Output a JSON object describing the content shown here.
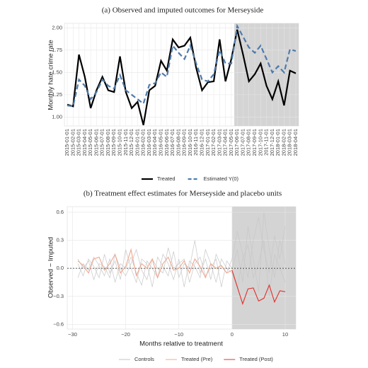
{
  "chart_data": [
    {
      "type": "line",
      "title": "(a) Observed and imputed outcomes for Merseyside",
      "y_label": "Monthly hate crime rate",
      "categories": [
        "2015-01-01",
        "2015-02-01",
        "2015-03-01",
        "2015-04-01",
        "2015-05-01",
        "2015-06-01",
        "2015-07-01",
        "2015-08-01",
        "2015-09-01",
        "2015-10-01",
        "2015-11-01",
        "2015-12-01",
        "2016-01-01",
        "2016-02-01",
        "2016-03-01",
        "2016-04-01",
        "2016-05-01",
        "2016-06-01",
        "2016-07-01",
        "2016-08-01",
        "2016-09-01",
        "2016-10-01",
        "2016-11-01",
        "2016-12-01",
        "2017-01-01",
        "2017-02-01",
        "2017-03-01",
        "2017-04-01",
        "2017-05-01",
        "2017-06-01",
        "2017-07-01",
        "2017-08-01",
        "2017-09-01",
        "2017-10-01",
        "2017-11-01",
        "2017-12-01",
        "2018-01-01",
        "2018-02-01",
        "2018-03-01",
        "2018-04-01"
      ],
      "series": [
        {
          "name": "Treated",
          "color": "#000000",
          "dashed": false,
          "values": [
            1.14,
            1.12,
            1.7,
            1.45,
            1.1,
            1.3,
            1.45,
            1.3,
            1.28,
            1.68,
            1.28,
            1.1,
            1.17,
            0.91,
            1.3,
            1.35,
            1.63,
            1.52,
            1.87,
            1.78,
            1.8,
            1.89,
            1.55,
            1.3,
            1.39,
            1.4,
            1.87,
            1.4,
            1.65,
            1.98,
            1.7,
            1.4,
            1.48,
            1.6,
            1.35,
            1.2,
            1.4,
            1.13,
            1.52,
            1.49
          ]
        },
        {
          "name": "Estimated Y(0)",
          "color": "#4f7bab",
          "dashed": true,
          "values": [
            1.13,
            1.12,
            1.42,
            1.35,
            1.2,
            1.28,
            1.42,
            1.35,
            1.32,
            1.47,
            1.3,
            1.25,
            1.2,
            1.15,
            1.36,
            1.38,
            1.5,
            1.45,
            1.8,
            1.72,
            1.65,
            1.8,
            1.6,
            1.42,
            1.4,
            1.48,
            1.75,
            1.6,
            1.6,
            2.02,
            1.9,
            1.78,
            1.72,
            1.8,
            1.65,
            1.5,
            1.57,
            1.5,
            1.76,
            1.74
          ]
        }
      ],
      "shade_from": "2017-06-01",
      "ylim": [
        0.9,
        2.05
      ],
      "yticks": [
        {
          "value": 1,
          "label": "1.00"
        },
        {
          "value": 1.25,
          "label": "1.25"
        },
        {
          "value": 1.5,
          "label": "1.50"
        },
        {
          "value": 1.75,
          "label": "1.75"
        },
        {
          "value": 2,
          "label": "2.00"
        }
      ],
      "grid": true
    },
    {
      "type": "line",
      "title": "(b) Treatment effect estimates for Merseyside and placebo units",
      "x_label": "Months relative to treatment",
      "y_label": "Observed − Imputed",
      "x": [
        -29,
        -28,
        -27,
        -26,
        -25,
        -24,
        -23,
        -22,
        -21,
        -20,
        -19,
        -18,
        -17,
        -16,
        -15,
        -14,
        -13,
        -12,
        -11,
        -10,
        -9,
        -8,
        -7,
        -6,
        -5,
        -4,
        -3,
        -2,
        -1,
        0,
        1,
        2,
        3,
        4,
        5,
        6,
        7,
        8,
        9,
        10
      ],
      "controls": {
        "name": "Controls",
        "color": "#c8c8c8",
        "lines": [
          [
            0.05,
            -0.08,
            0.1,
            0.02,
            -0.1,
            0.15,
            -0.05,
            0.08,
            -0.12,
            0.2,
            0.0,
            -0.15,
            0.1,
            0.05,
            -0.2,
            0.12,
            0.02,
            -0.08,
            0.18,
            -0.1,
            0.05,
            0.0,
            0.3,
            -0.05,
            0.1,
            -0.12,
            0.15,
            0.02,
            -0.05,
            0.1,
            0.4,
            0.15,
            -0.1,
            0.3,
            0.55,
            0.2,
            -0.05,
            0.35,
            0.1,
            0.45
          ],
          [
            -0.1,
            0.05,
            -0.02,
            0.12,
            0.03,
            -0.08,
            0.1,
            -0.15,
            0.05,
            0.0,
            0.12,
            -0.05,
            -0.18,
            0.08,
            0.0,
            -0.1,
            0.15,
            0.05,
            -0.12,
            0.1,
            -0.2,
            0.08,
            0.02,
            -0.1,
            0.2,
            0.05,
            -0.15,
            0.1,
            0.0,
            -0.05,
            -0.2,
            0.1,
            0.25,
            -0.1,
            0.05,
            0.3,
            -0.3,
            0.15,
            0.0,
            -0.15
          ],
          [
            0.1,
            0.0,
            0.08,
            -0.12,
            0.05,
            0.02,
            -0.1,
            0.15,
            0.0,
            -0.08,
            0.05,
            0.2,
            -0.02,
            -0.12,
            0.1,
            0.0,
            -0.05,
            0.22,
            0.0,
            0.05,
            0.1,
            -0.15,
            0.05,
            0.12,
            -0.08,
            0.0,
            0.1,
            -0.2,
            0.08,
            0.0,
            0.2,
            -0.15,
            0.45,
            0.1,
            -0.25,
            0.6,
            0.2,
            -0.1,
            0.3,
            0.05
          ]
        ]
      },
      "series": [
        {
          "name": "Treated (Pre)",
          "color": "#f0a890",
          "values": [
            0.08,
            0.03,
            -0.05,
            0.1,
            0.12,
            -0.02,
            0.05,
            0.15,
            -0.05,
            0.02,
            0.2,
            -0.08,
            0.05,
            0.0,
            0.1,
            -0.1,
            0.05,
            0.12,
            -0.02,
            0.0,
            0.08,
            -0.05,
            0.1,
            0.02,
            -0.1,
            0.05,
            0.0,
            0.03,
            -0.05,
            -0.02,
            null,
            null,
            null,
            null,
            null,
            null,
            null,
            null,
            null,
            null
          ]
        },
        {
          "name": "Treated (Post)",
          "color": "#e0302a",
          "values": [
            null,
            null,
            null,
            null,
            null,
            null,
            null,
            null,
            null,
            null,
            null,
            null,
            null,
            null,
            null,
            null,
            null,
            null,
            null,
            null,
            null,
            null,
            null,
            null,
            null,
            null,
            null,
            null,
            null,
            -0.02,
            -0.2,
            -0.38,
            -0.22,
            -0.21,
            -0.35,
            -0.32,
            -0.18,
            -0.36,
            -0.24,
            -0.25
          ]
        }
      ],
      "shade_from": 0,
      "hline": 0,
      "xlim": [
        -31,
        12
      ],
      "xticks": [
        {
          "value": -30,
          "label": "−30"
        },
        {
          "value": -20,
          "label": "−20"
        },
        {
          "value": -10,
          "label": "−10"
        },
        0,
        10
      ],
      "ylim": [
        -0.65,
        0.66
      ],
      "yticks": [
        {
          "value": -0.6,
          "label": "−0.6"
        },
        {
          "value": -0.3,
          "label": "−0.3"
        },
        {
          "value": 0,
          "label": "0.0"
        },
        {
          "value": 0.3,
          "label": "0.3"
        },
        {
          "value": 0.6,
          "label": "0.6"
        }
      ],
      "grid": true
    }
  ]
}
